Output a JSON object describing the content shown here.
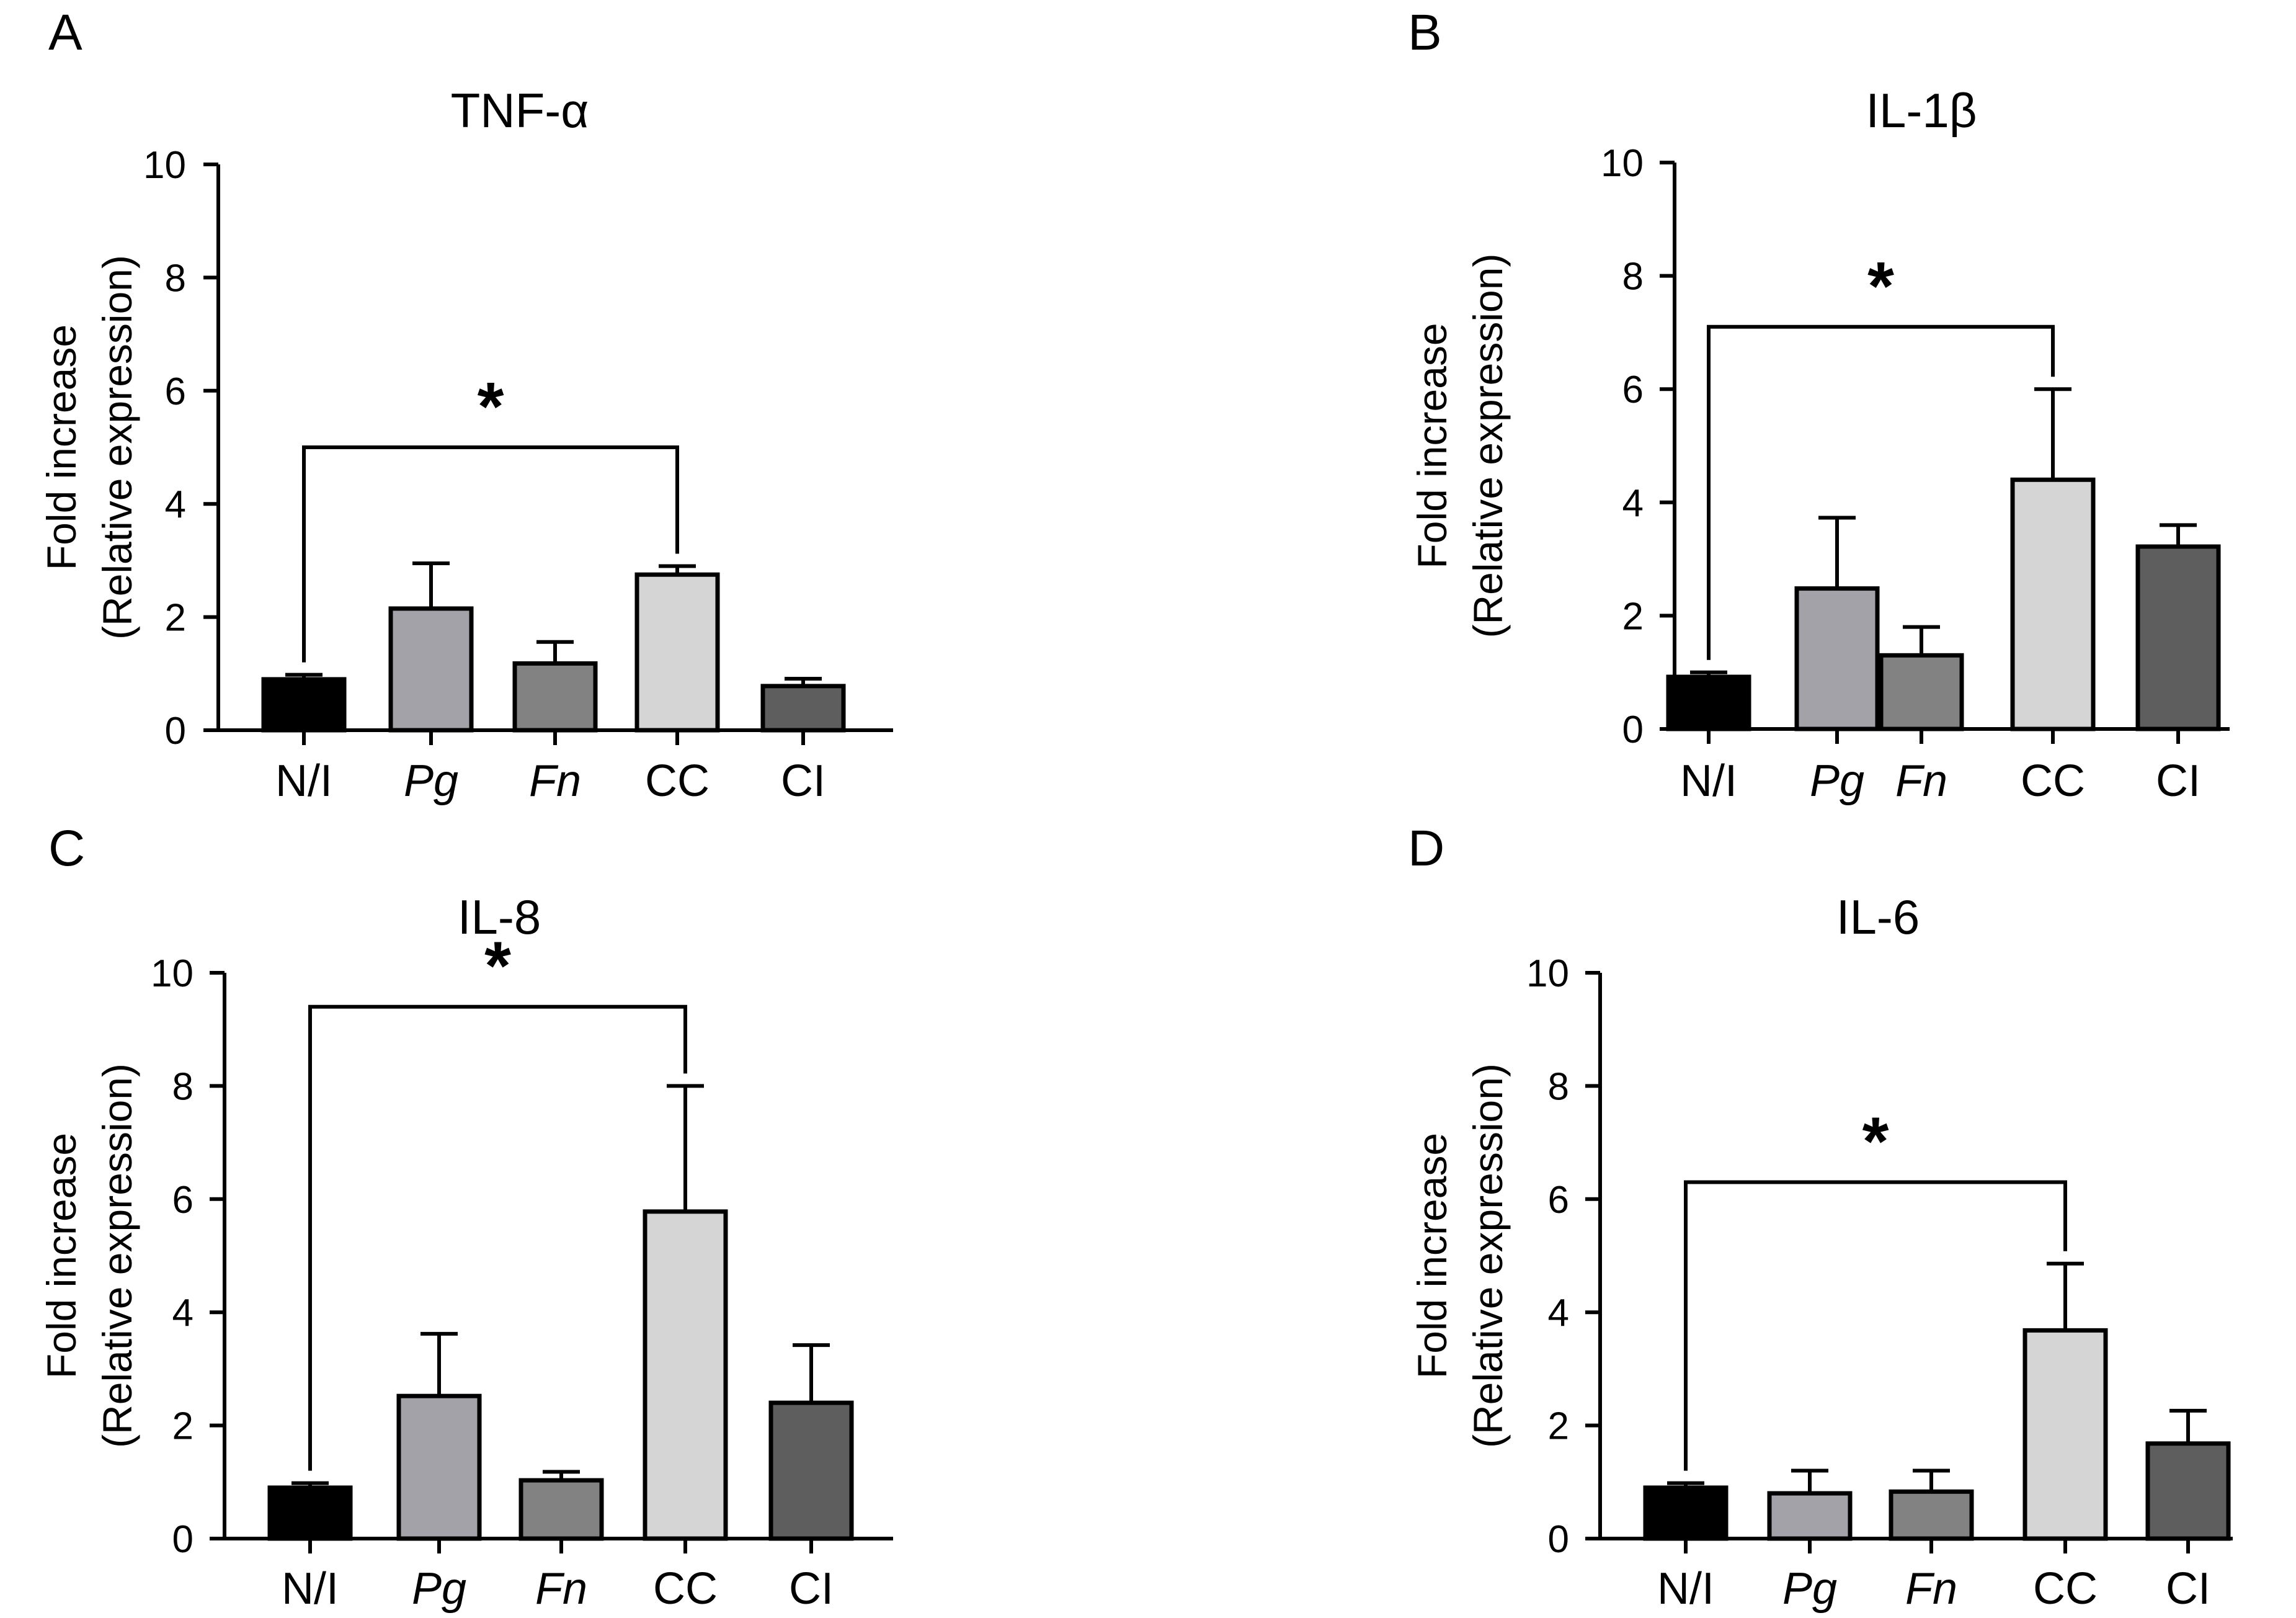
{
  "colors": {
    "axis": "#000000",
    "bar_stroke": "#000000",
    "category_fills": [
      "#000000",
      "#a3a2a8",
      "#828282",
      "#d5d5d5",
      "#5e5e5e"
    ]
  },
  "chart_data": [
    {
      "type": "bar",
      "panel": "A",
      "title": "TNF-α",
      "ylabel_line1": "Fold increase",
      "ylabel_line2": "(Relative expression)",
      "xlabel": "",
      "ylim": [
        0,
        10
      ],
      "yticks": [
        0,
        2,
        4,
        6,
        8,
        10
      ],
      "categories": [
        "N/I",
        "Pg",
        "Fn",
        "CC",
        "CI"
      ],
      "italic_categories": [
        false,
        true,
        true,
        false,
        false
      ],
      "values": [
        0.9,
        2.15,
        1.18,
        2.75,
        0.78
      ],
      "errors": [
        0.08,
        0.8,
        0.38,
        0.15,
        0.13
      ],
      "significance": {
        "from": 0,
        "to": 3,
        "y": 5.0,
        "label": "*"
      }
    },
    {
      "type": "bar",
      "panel": "B",
      "title": "IL-1β",
      "ylabel_line1": "Fold increase",
      "ylabel_line2": "(Relative expression)",
      "xlabel": "",
      "ylim": [
        0,
        10
      ],
      "yticks": [
        0,
        2,
        4,
        6,
        8,
        10
      ],
      "categories": [
        "N/I",
        "Pg",
        "Fn",
        "CC",
        "CI"
      ],
      "italic_categories": [
        false,
        true,
        true,
        false,
        false
      ],
      "values": [
        0.92,
        2.48,
        1.3,
        4.4,
        3.22
      ],
      "errors": [
        0.08,
        1.25,
        0.5,
        1.6,
        0.38
      ],
      "significance": {
        "from": 0,
        "to": 3,
        "y": 7.1,
        "label": "*"
      }
    },
    {
      "type": "bar",
      "panel": "C",
      "title": "IL-8",
      "ylabel_line1": "Fold increase",
      "ylabel_line2": "(Relative expression)",
      "xlabel": "",
      "ylim": [
        0,
        10
      ],
      "yticks": [
        0,
        2,
        4,
        6,
        8,
        10
      ],
      "categories": [
        "N/I",
        "Pg",
        "Fn",
        "CC",
        "CI"
      ],
      "italic_categories": [
        false,
        true,
        true,
        false,
        false
      ],
      "values": [
        0.9,
        2.52,
        1.03,
        5.78,
        2.4
      ],
      "errors": [
        0.08,
        1.1,
        0.15,
        2.22,
        1.02
      ],
      "significance": {
        "from": 0,
        "to": 3,
        "y": 9.4,
        "label": "*"
      }
    },
    {
      "type": "bar",
      "panel": "D",
      "title": "IL-6",
      "ylabel_line1": "Fold increase",
      "ylabel_line2": "(Relative expression)",
      "xlabel": "",
      "ylim": [
        0,
        10
      ],
      "yticks": [
        0,
        2,
        4,
        6,
        8,
        10
      ],
      "categories": [
        "N/I",
        "Pg",
        "Fn",
        "CC",
        "CI"
      ],
      "italic_categories": [
        false,
        true,
        true,
        false,
        false
      ],
      "values": [
        0.9,
        0.8,
        0.83,
        3.68,
        1.68
      ],
      "errors": [
        0.08,
        0.4,
        0.37,
        1.18,
        0.58
      ],
      "significance": {
        "from": 0,
        "to": 3,
        "y": 6.3,
        "label": "*"
      }
    }
  ]
}
